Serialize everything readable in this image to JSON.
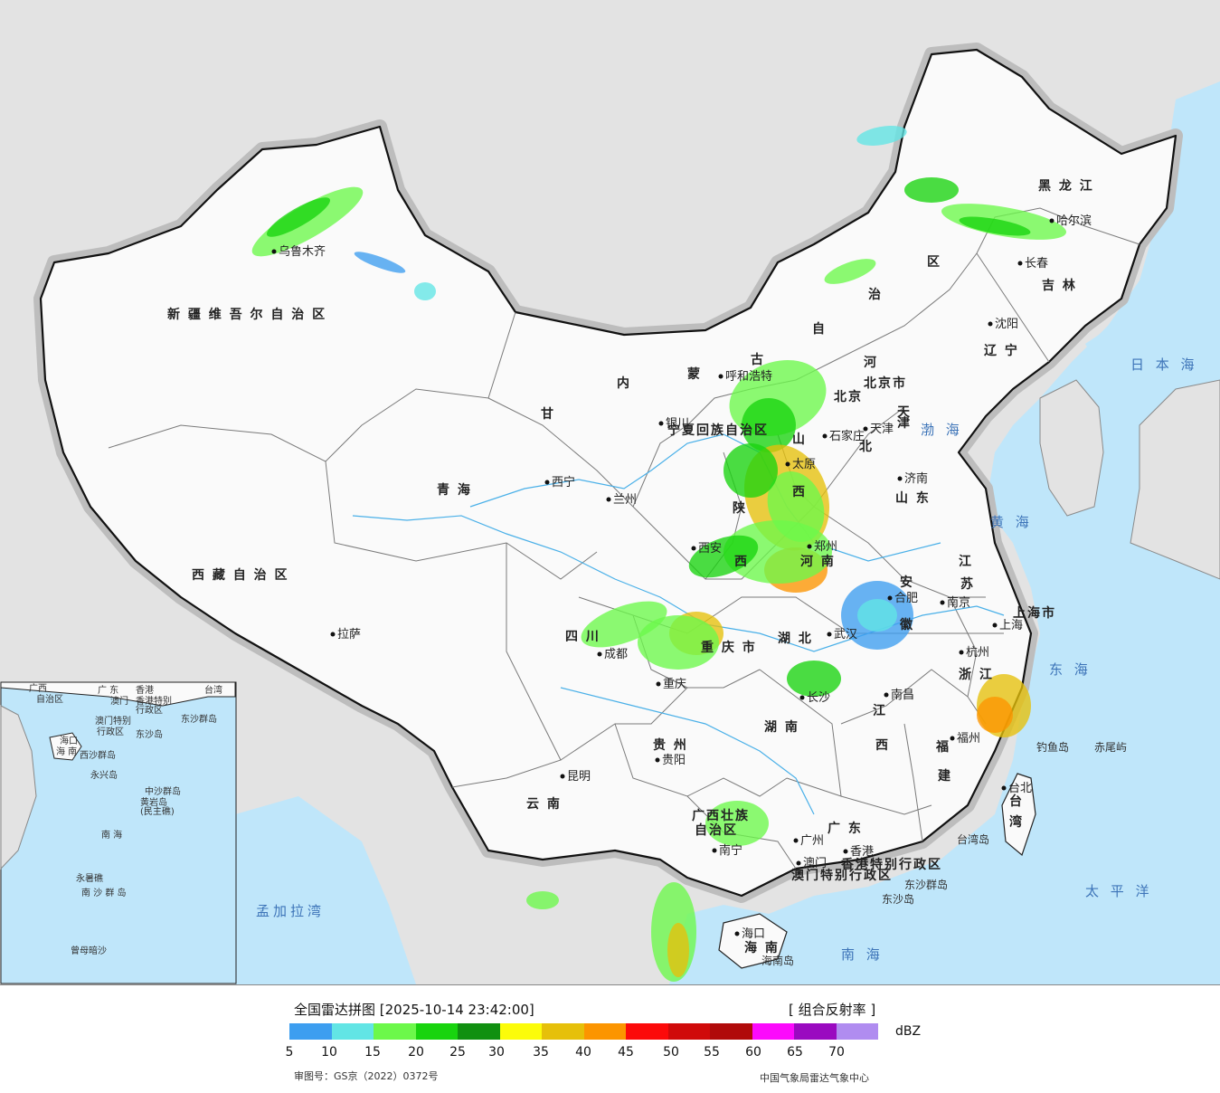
{
  "legend": {
    "title": "全国雷达拼图 [2025-10-14 23:42:00]",
    "product": "[ 组合反射率 ]",
    "unit": "dBZ",
    "colors": [
      "#3d9ef0",
      "#62e5e5",
      "#6cf84a",
      "#18d40e",
      "#109010",
      "#fcfc0a",
      "#e6c00a",
      "#fc9500",
      "#fc0a0a",
      "#d00a0a",
      "#b00a0a",
      "#fc0afc",
      "#9a0ac0",
      "#b08cf0"
    ],
    "ticks": [
      "5",
      "10",
      "15",
      "20",
      "25",
      "30",
      "35",
      "40",
      "45",
      "50",
      "55",
      "60",
      "65",
      "70"
    ],
    "approval": "审图号：GS京（2022）0372号",
    "agency": "中国气象局雷达气象中心"
  },
  "map": {
    "provinces": [
      {
        "id": "xinjiang",
        "label": "新 疆 维 吾 尔 自 治 区"
      },
      {
        "id": "xizang",
        "label": "西 藏 自 治 区"
      },
      {
        "id": "qinghai",
        "label": "青      海"
      },
      {
        "id": "gansu",
        "label": "甘"
      },
      {
        "id": "neimenggu1",
        "label": "内"
      },
      {
        "id": "neimenggu2",
        "label": "蒙"
      },
      {
        "id": "neimenggu3",
        "label": "古"
      },
      {
        "id": "neimenggu4",
        "label": "自"
      },
      {
        "id": "neimenggu5",
        "label": "治"
      },
      {
        "id": "neimenggu6",
        "label": "区"
      },
      {
        "id": "heilongjiang",
        "label": "黑 龙 江"
      },
      {
        "id": "jilin",
        "label": "吉 林"
      },
      {
        "id": "liaoning",
        "label": "辽 宁"
      },
      {
        "id": "hebei1",
        "label": "河"
      },
      {
        "id": "hebei2",
        "label": "北"
      },
      {
        "id": "shanxi",
        "label": "山"
      },
      {
        "id": "shanxi2",
        "label": "西"
      },
      {
        "id": "shandong",
        "label": "山 东"
      },
      {
        "id": "henan",
        "label": "河 南"
      },
      {
        "id": "shaanxi",
        "label": "陕"
      },
      {
        "id": "shaanxi2",
        "label": "西"
      },
      {
        "id": "anhui",
        "label": "安"
      },
      {
        "id": "anhui2",
        "label": "徽"
      },
      {
        "id": "jiangsu",
        "label": "江"
      },
      {
        "id": "jiangsu2",
        "label": "苏"
      },
      {
        "id": "shanghai",
        "label": "上海市"
      },
      {
        "id": "zhejiang",
        "label": "浙 江"
      },
      {
        "id": "hubei",
        "label": "湖 北"
      },
      {
        "id": "sichuan",
        "label": "四 川"
      },
      {
        "id": "chongqing",
        "label": "重 庆 市"
      },
      {
        "id": "hunan",
        "label": "湖 南"
      },
      {
        "id": "jiangxi",
        "label": "江"
      },
      {
        "id": "jiangxi2",
        "label": "西"
      },
      {
        "id": "fujian",
        "label": "福"
      },
      {
        "id": "fujian2",
        "label": "建"
      },
      {
        "id": "guizhou",
        "label": "贵 州"
      },
      {
        "id": "yunnan",
        "label": "云   南"
      },
      {
        "id": "guangxi",
        "label": "广西壮族"
      },
      {
        "id": "guangxi2",
        "label": "自治区"
      },
      {
        "id": "guangdong",
        "label": "广 东"
      },
      {
        "id": "hainan",
        "label": "海   南"
      },
      {
        "id": "taiwan",
        "label": "台"
      },
      {
        "id": "taiwan2",
        "label": "湾"
      },
      {
        "id": "ningxia",
        "label": "宁夏回族自治区"
      },
      {
        "id": "tianjin",
        "label": "天"
      },
      {
        "id": "tianjin2",
        "label": "津"
      },
      {
        "id": "beijing",
        "label": "北京"
      },
      {
        "id": "beijing2",
        "label": "北京市"
      },
      {
        "id": "hk",
        "label": "香港特别行政区"
      },
      {
        "id": "macau",
        "label": "澳门特别行政区"
      }
    ],
    "cities": [
      {
        "id": "urumqi",
        "label": "乌鲁木齐"
      },
      {
        "id": "lhasa",
        "label": "拉萨"
      },
      {
        "id": "xining",
        "label": "西宁"
      },
      {
        "id": "lanzhou",
        "label": "兰州"
      },
      {
        "id": "yinchuan",
        "label": "银川"
      },
      {
        "id": "hohhot",
        "label": "呼和浩特"
      },
      {
        "id": "harbin",
        "label": "哈尔滨"
      },
      {
        "id": "changchun",
        "label": "长春"
      },
      {
        "id": "shenyang",
        "label": "沈阳"
      },
      {
        "id": "tianjin-city",
        "label": "天津"
      },
      {
        "id": "shijiazhuang",
        "label": "石家庄"
      },
      {
        "id": "taiyuan",
        "label": "太原"
      },
      {
        "id": "jinan",
        "label": "济南"
      },
      {
        "id": "zhengzhou",
        "label": "郑州"
      },
      {
        "id": "xian",
        "label": "西安"
      },
      {
        "id": "hefei",
        "label": "合肥"
      },
      {
        "id": "nanjing",
        "label": "南京"
      },
      {
        "id": "shanghai-city",
        "label": "上海"
      },
      {
        "id": "hangzhou",
        "label": "杭州"
      },
      {
        "id": "wuhan",
        "label": "武汉"
      },
      {
        "id": "chengdu",
        "label": "成都"
      },
      {
        "id": "chongqing-city",
        "label": "重庆"
      },
      {
        "id": "changsha",
        "label": "长沙"
      },
      {
        "id": "nanchang",
        "label": "南昌"
      },
      {
        "id": "fuzhou",
        "label": "福州"
      },
      {
        "id": "guiyang",
        "label": "贵阳"
      },
      {
        "id": "kunming",
        "label": "昆明"
      },
      {
        "id": "nanning",
        "label": "南宁"
      },
      {
        "id": "guangzhou",
        "label": "广州"
      },
      {
        "id": "macau-city",
        "label": "澳门"
      },
      {
        "id": "hongkong",
        "label": "香港"
      },
      {
        "id": "haikou",
        "label": "海口"
      },
      {
        "id": "taipei",
        "label": "台北"
      }
    ],
    "seas": [
      {
        "id": "bohai",
        "label": "渤 海"
      },
      {
        "id": "huanghai",
        "label": "黄 海"
      },
      {
        "id": "donghai",
        "label": "东 海"
      },
      {
        "id": "nanhai",
        "label": "南   海"
      },
      {
        "id": "taipingyang",
        "label": "太 平 洋"
      },
      {
        "id": "ribenhai",
        "label": "日 本 海"
      },
      {
        "id": "mengjiala",
        "label": "孟加拉湾"
      }
    ],
    "islands": [
      {
        "id": "diaoyu",
        "label": "钓鱼岛"
      },
      {
        "id": "chiwei",
        "label": "赤尾屿"
      },
      {
        "id": "taiwan-island",
        "label": "台湾岛"
      },
      {
        "id": "dongsha-qd",
        "label": "东沙群岛"
      },
      {
        "id": "dongsha",
        "label": "东沙岛"
      },
      {
        "id": "hainan-island",
        "label": "海南岛"
      }
    ],
    "inset": [
      {
        "id": "i-guangxi",
        "label": "广西"
      },
      {
        "id": "i-guangdong",
        "label": "广 东"
      },
      {
        "id": "i-hk",
        "label": "香港"
      },
      {
        "id": "i-taiwan",
        "label": "台湾"
      },
      {
        "id": "i-zizhi",
        "label": "自治区"
      },
      {
        "id": "i-macau",
        "label": "澳门"
      },
      {
        "id": "i-hksar",
        "label": "香港特别"
      },
      {
        "id": "i-hksar2",
        "label": "行政区"
      },
      {
        "id": "i-macausar",
        "label": "澳门特别"
      },
      {
        "id": "i-macausar2",
        "label": "行政区"
      },
      {
        "id": "i-dongsha-qd",
        "label": "东沙群岛"
      },
      {
        "id": "i-dongsha",
        "label": "东沙岛"
      },
      {
        "id": "i-hainan",
        "label": "海口"
      },
      {
        "id": "i-hainan2",
        "label": "海 南"
      },
      {
        "id": "i-xisha",
        "label": "西沙群岛"
      },
      {
        "id": "i-yongxing",
        "label": "永兴岛"
      },
      {
        "id": "i-zhongsha",
        "label": "中沙群岛"
      },
      {
        "id": "i-huangyan",
        "label": "黄岩岛"
      },
      {
        "id": "i-huangyan2",
        "label": "(民主礁)"
      },
      {
        "id": "i-nanhai",
        "label": "南   海"
      },
      {
        "id": "i-yongshu",
        "label": "永暑礁"
      },
      {
        "id": "i-nansha",
        "label": "南 沙 群 岛"
      },
      {
        "id": "i-zengmu",
        "label": "曾母暗沙"
      }
    ]
  }
}
